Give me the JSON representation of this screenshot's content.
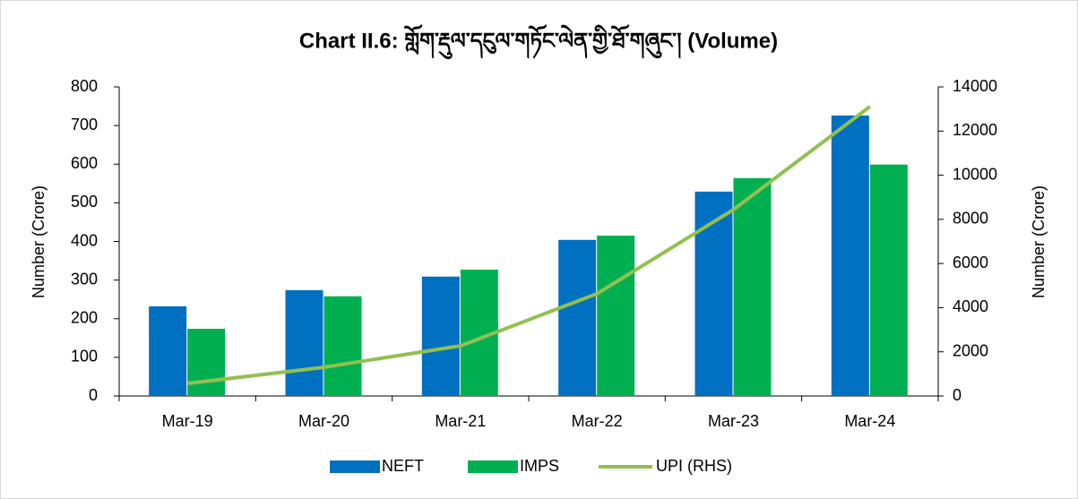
{
  "chart_data": {
    "type": "bar_line",
    "title": "Chart II.6: གློག་རྡུལ་དངུལ་གཏོང་ལེན་གྱི་ཐོ་གཞུང་། (Volume)",
    "ylabel": "Number (Crore)",
    "y2label": "Number (Crore)",
    "categories": [
      "Mar-19",
      "Mar-20",
      "Mar-21",
      "Mar-22",
      "Mar-23",
      "Mar-24"
    ],
    "series": [
      {
        "name": "NEFT",
        "type": "bar",
        "color": "#0070c0",
        "values": [
          232,
          274,
          309,
          404,
          529,
          726
        ]
      },
      {
        "name": "IMPS",
        "type": "bar",
        "color": "#00b050",
        "values": [
          174,
          258,
          327,
          415,
          564,
          599
        ]
      },
      {
        "name": "UPI (RHS)",
        "type": "line",
        "axis": "y2",
        "color": "#92c050",
        "values": [
          568,
          1300,
          2270,
          4630,
          8440,
          13110
        ]
      }
    ],
    "ylim": [
      0,
      800
    ],
    "yticks": [
      0,
      100,
      200,
      300,
      400,
      500,
      600,
      700,
      800
    ],
    "y2lim": [
      0,
      14000
    ],
    "y2ticks": [
      0,
      2000,
      4000,
      6000,
      8000,
      10000,
      12000,
      14000
    ],
    "legend": "bottom"
  }
}
